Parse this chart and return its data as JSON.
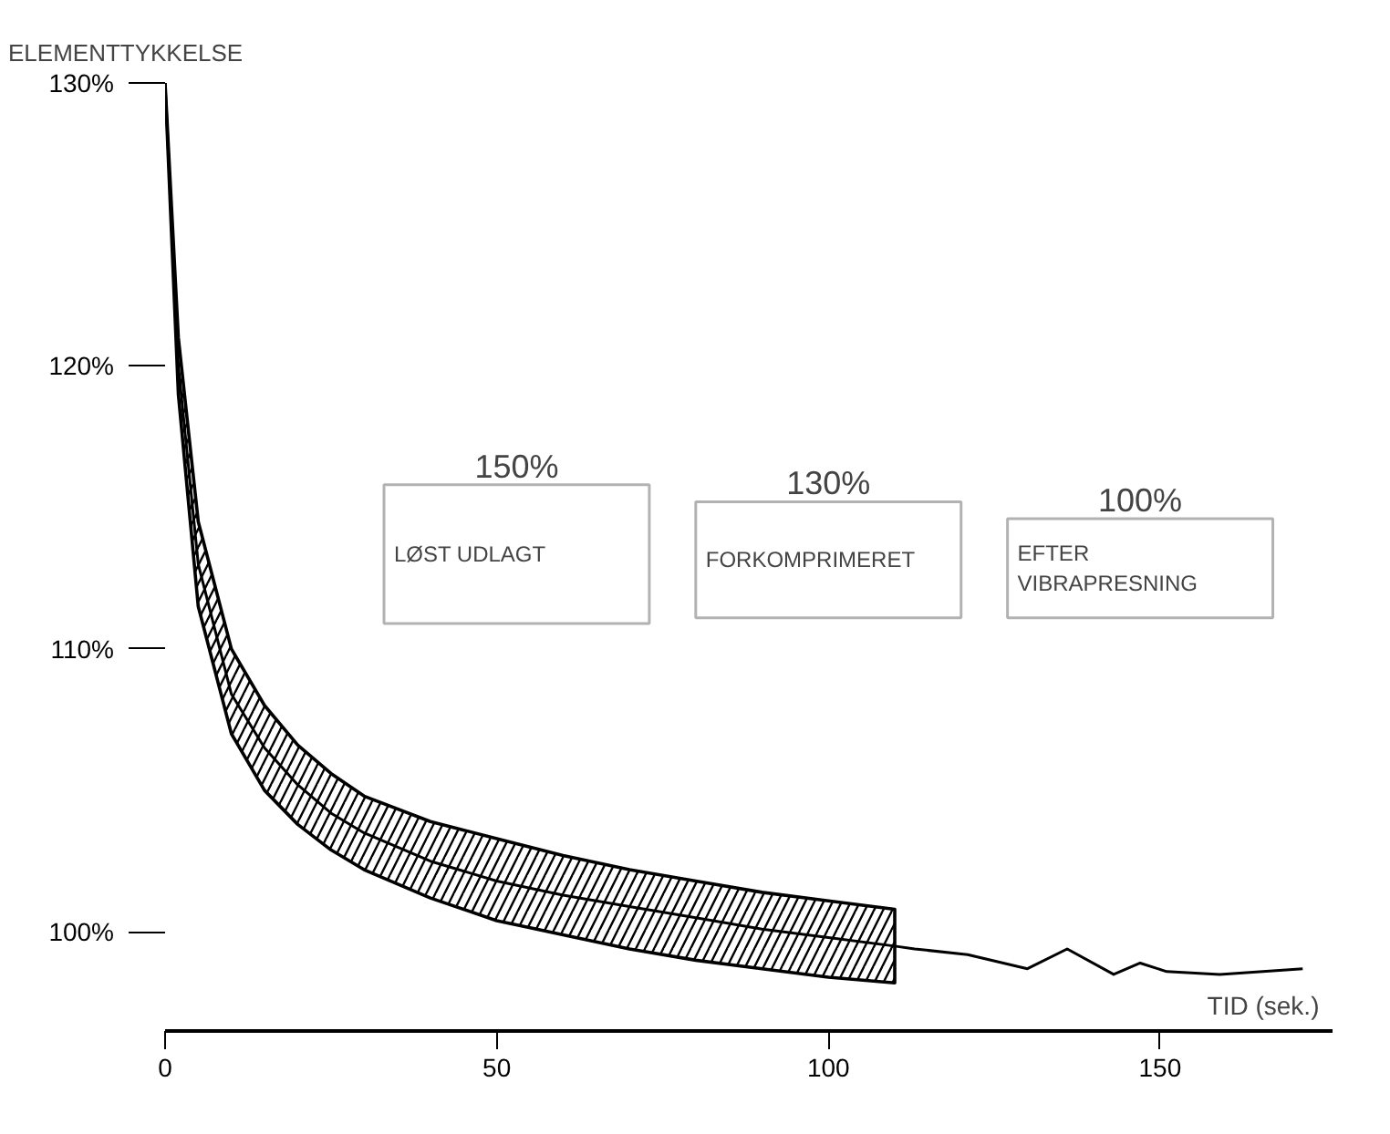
{
  "chart_data": {
    "type": "line",
    "xlabel": "TID (sek.)",
    "ylabel": "ELEMENTTYKKELSE",
    "xlim": [
      0,
      176
    ],
    "ylim": [
      96.5,
      130
    ],
    "xticks": [
      0,
      50,
      100,
      150
    ],
    "yticks": [
      {
        "value": 100,
        "label": "100%"
      },
      {
        "value": 110,
        "label": "110%"
      },
      {
        "value": 120,
        "label": "120%"
      },
      {
        "value": 130,
        "label": "130%"
      }
    ],
    "marker": "none",
    "line_style": "solid",
    "series": [
      {
        "color": "#000000",
        "x": [
          0,
          2,
          5,
          10,
          15,
          20,
          25,
          30,
          40,
          50,
          60,
          70,
          80,
          90,
          100,
          110,
          113,
          121,
          130,
          136,
          143,
          147,
          151,
          159,
          171.5
        ],
        "values": [
          130,
          120,
          113,
          108.4,
          106.5,
          105.2,
          104.2,
          103.5,
          102.5,
          101.8,
          101.3,
          100.9,
          100.5,
          100.1,
          99.8,
          99.5,
          99.4,
          99.2,
          98.7,
          99.4,
          98.5,
          98.9,
          98.6,
          98.5,
          98.7
        ],
        "upper": [
          130,
          121,
          114.5,
          110,
          108,
          106.6,
          105.6,
          104.8,
          103.9,
          103.3,
          102.7,
          102.2,
          101.8,
          101.4,
          101.1,
          100.8,
          null,
          null,
          null,
          null,
          null,
          null,
          null,
          null,
          null
        ],
        "lower": [
          130,
          119,
          111.5,
          107,
          105,
          103.8,
          102.9,
          102.2,
          101.2,
          100.4,
          99.9,
          99.4,
          99.0,
          98.7,
          98.4,
          98.2,
          null,
          null,
          null,
          null,
          null,
          null,
          null,
          null,
          null
        ]
      }
    ],
    "annotations": [
      "150%",
      "LØST UDLAGT",
      "130%",
      "FORKOMPRIMERET",
      "100%",
      "EFTER\nVIBRAPRESNING"
    ]
  }
}
